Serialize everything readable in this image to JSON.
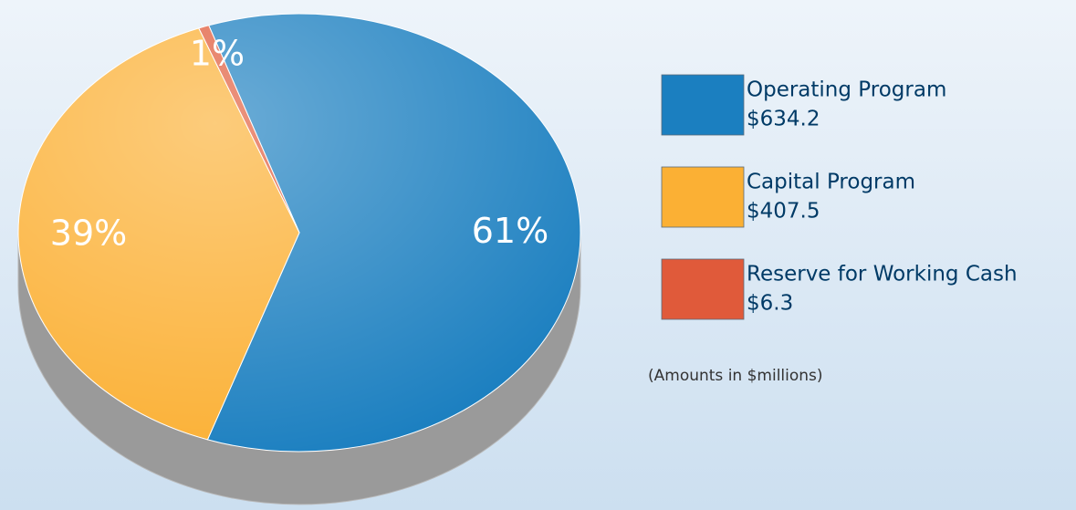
{
  "chart_data": {
    "type": "pie",
    "categories": [
      "Operating Program",
      "Capital Program",
      "Reserve for Working Cash"
    ],
    "values": [
      61,
      39,
      1
    ],
    "value_labels": [
      "61%",
      "39%",
      "1%"
    ],
    "amounts": [
      634.2,
      407.5,
      6.3
    ],
    "amount_labels": [
      "$634.2",
      "$407.5",
      "$6.3"
    ],
    "colors": [
      "#1b7fc0",
      "#fbb034",
      "#e05a3a"
    ],
    "note": "(Amounts in $millions)"
  }
}
